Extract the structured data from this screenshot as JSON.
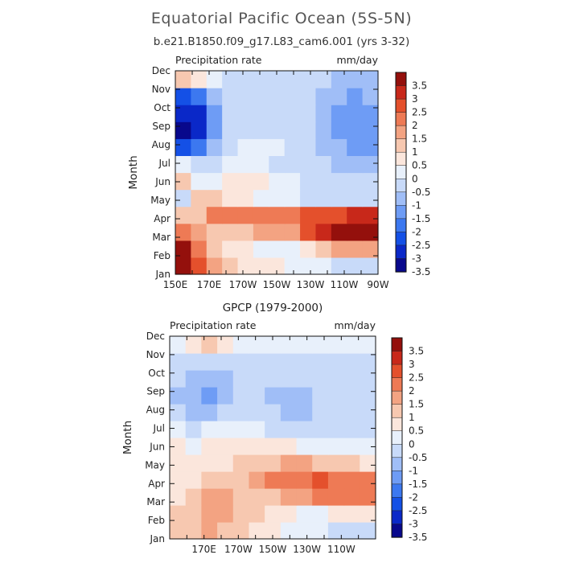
{
  "figure": {
    "title": "Equatorial Pacific Ocean (5S-5N)",
    "subtitle": "b.e21.B1850.f09_g17.L83_cam6.001 (yrs 3-32)"
  },
  "colors": {
    "scale": [
      "#08088c",
      "#0a28c8",
      "#1450e6",
      "#3c78f0",
      "#6e9cf5",
      "#a0bef7",
      "#c8daf9",
      "#e8f0fb",
      "#fbe6dc",
      "#f7c8b0",
      "#f3a382",
      "#ee7a55",
      "#e4502c",
      "#c8281a",
      "#94100c"
    ]
  },
  "chart_data": [
    {
      "type": "heatmap",
      "title": "",
      "field_label": "Precipitation rate",
      "units": "mm/day",
      "ylabel": "Month",
      "xlabel": "",
      "x": [
        "150E",
        "160E",
        "170E",
        "180",
        "170W",
        "160W",
        "150W",
        "140W",
        "130W",
        "120W",
        "110W",
        "100W",
        "90W"
      ],
      "x_ticks": [
        "150E",
        "170E",
        "170W",
        "150W",
        "130W",
        "110W",
        "90W"
      ],
      "y": [
        "Jan",
        "Feb",
        "Mar",
        "Apr",
        "May",
        "Jun",
        "Jul",
        "Aug",
        "Sep",
        "Oct",
        "Nov",
        "Dec"
      ],
      "levels": [
        -3.5,
        -3,
        -2.5,
        -2,
        -1.5,
        -1,
        -0.5,
        0,
        0.5,
        1,
        1.5,
        2,
        2.5,
        3,
        3.5
      ],
      "colorbar_labels": [
        "3.5",
        "3",
        "2.5",
        "2",
        "1.5",
        "1",
        "0.5",
        "0",
        "-0.5",
        "-1",
        "-1.5",
        "-2",
        "-2.5",
        "-3",
        "-3.5"
      ],
      "values": [
        [
          3.6,
          2.2,
          1.0,
          0.6,
          0.3,
          0.2,
          0.1,
          -0.1,
          -0.3,
          -0.5,
          -0.6,
          -0.7,
          -0.7
        ],
        [
          3.0,
          1.8,
          0.8,
          0.4,
          0.0,
          -0.4,
          -0.5,
          -0.5,
          0.0,
          0.5,
          1.0,
          1.2,
          1.3
        ],
        [
          1.5,
          1.1,
          0.9,
          0.7,
          0.8,
          1.0,
          1.2,
          1.4,
          2.0,
          2.8,
          3.2,
          3.4,
          3.6
        ],
        [
          0.6,
          0.8,
          1.6,
          1.5,
          1.7,
          1.6,
          1.6,
          1.8,
          2.0,
          2.3,
          2.4,
          2.5,
          2.6
        ],
        [
          -0.6,
          0.6,
          0.5,
          0.3,
          0.0,
          -0.2,
          -0.3,
          -0.5,
          -0.6,
          -0.7,
          -0.8,
          -0.9,
          -0.9
        ],
        [
          0.8,
          -0.2,
          -0.1,
          0.2,
          0.2,
          0.0,
          -0.3,
          -0.5,
          -0.6,
          -0.8,
          -0.9,
          -1.0,
          -1.0
        ],
        [
          -0.3,
          -0.6,
          -0.7,
          -0.5,
          -0.3,
          -0.4,
          -0.6,
          -0.7,
          -0.8,
          -1.0,
          -1.1,
          -1.1,
          -1.1
        ],
        [
          -3.0,
          -2.5,
          -1.4,
          -0.6,
          -0.4,
          -0.4,
          -0.5,
          -0.6,
          -0.7,
          -1.1,
          -1.5,
          -1.7,
          -1.9
        ],
        [
          -3.6,
          -3.2,
          -1.6,
          -0.8,
          -0.6,
          -0.6,
          -0.6,
          -0.7,
          -0.8,
          -1.2,
          -1.6,
          -1.8,
          -2.0
        ],
        [
          -3.5,
          -3.3,
          -1.8,
          -1.0,
          -0.8,
          -0.8,
          -0.8,
          -0.8,
          -0.9,
          -1.2,
          -1.6,
          -1.8,
          -2.0
        ],
        [
          -2.6,
          -2.2,
          -1.4,
          -0.9,
          -0.9,
          -0.9,
          -0.9,
          -0.9,
          -1.0,
          -1.2,
          -1.4,
          -1.6,
          -1.5
        ],
        [
          0.6,
          0.4,
          -0.3,
          -0.7,
          -0.8,
          -0.9,
          -0.9,
          -0.9,
          -1.0,
          -1.0,
          -1.1,
          -1.1,
          -1.1
        ]
      ]
    },
    {
      "type": "heatmap",
      "title": "GPCP (1979-2000)",
      "field_label": "Precipitation rate",
      "units": "mm/day",
      "ylabel": "Month",
      "xlabel": "",
      "x": [
        "150E",
        "160E",
        "170E",
        "180",
        "170W",
        "160W",
        "150W",
        "140W",
        "130W",
        "120W",
        "110W",
        "100W",
        "90W"
      ],
      "x_ticks": [
        "170E",
        "170W",
        "150W",
        "130W",
        "110W"
      ],
      "y": [
        "Jan",
        "Feb",
        "Mar",
        "Apr",
        "May",
        "Jun",
        "Jul",
        "Aug",
        "Sep",
        "Oct",
        "Nov",
        "Dec"
      ],
      "levels": [
        -3.5,
        -3,
        -2.5,
        -2,
        -1.5,
        -1,
        -0.5,
        0,
        0.5,
        1,
        1.5,
        2,
        2.5,
        3,
        3.5
      ],
      "colorbar_labels": [
        "3.5",
        "3",
        "2.5",
        "2",
        "1.5",
        "1",
        "0.5",
        "0",
        "-0.5",
        "-1",
        "-1.5",
        "-2",
        "-2.5",
        "-3",
        "-3.5"
      ],
      "values": [
        [
          0.6,
          0.8,
          1.1,
          0.9,
          0.5,
          0.2,
          0.0,
          -0.2,
          -0.4,
          -0.5,
          -0.6,
          -0.6,
          -0.6
        ],
        [
          0.5,
          0.9,
          1.3,
          1.1,
          0.8,
          0.5,
          0.3,
          0.1,
          -0.1,
          -0.1,
          0.0,
          0.1,
          0.2
        ],
        [
          0.3,
          0.7,
          1.1,
          1.0,
          0.9,
          0.8,
          0.9,
          1.1,
          1.4,
          1.6,
          1.8,
          1.7,
          1.6
        ],
        [
          0.3,
          0.4,
          0.5,
          0.6,
          0.8,
          1.1,
          1.6,
          1.8,
          1.9,
          2.0,
          1.9,
          1.7,
          1.7
        ],
        [
          0.2,
          0.3,
          0.3,
          0.4,
          0.6,
          0.8,
          0.9,
          1.0,
          1.0,
          0.8,
          0.6,
          0.5,
          0.4
        ],
        [
          0.0,
          -0.3,
          0.0,
          0.1,
          0.2,
          0.2,
          0.1,
          0.0,
          -0.1,
          -0.2,
          -0.3,
          -0.3,
          -0.3
        ],
        [
          -0.3,
          -0.6,
          -0.5,
          -0.5,
          -0.5,
          -0.5,
          -0.6,
          -0.6,
          -0.6,
          -0.6,
          -0.7,
          -0.7,
          -0.7
        ],
        [
          -0.7,
          -1.2,
          -1.1,
          -1.0,
          -0.9,
          -0.9,
          -1.0,
          -1.1,
          -1.1,
          -1.0,
          -1.0,
          -0.9,
          -0.9
        ],
        [
          -1.3,
          -1.4,
          -1.6,
          -1.4,
          -1.0,
          -1.0,
          -1.1,
          -1.1,
          -1.2,
          -1.0,
          -1.0,
          -0.9,
          -0.9
        ],
        [
          -1.0,
          -1.2,
          -1.5,
          -1.4,
          -0.9,
          -0.8,
          -0.9,
          -1.0,
          -1.0,
          -0.9,
          -0.9,
          -0.8,
          -0.8
        ],
        [
          -0.6,
          -0.8,
          -0.8,
          -0.7,
          -0.7,
          -0.6,
          -0.6,
          -0.6,
          -0.6,
          -0.6,
          -0.6,
          -0.6,
          -0.6
        ],
        [
          -0.2,
          0.2,
          0.6,
          0.1,
          -0.3,
          -0.4,
          -0.4,
          -0.5,
          -0.5,
          -0.5,
          -0.5,
          -0.5,
          -0.5
        ]
      ]
    }
  ]
}
